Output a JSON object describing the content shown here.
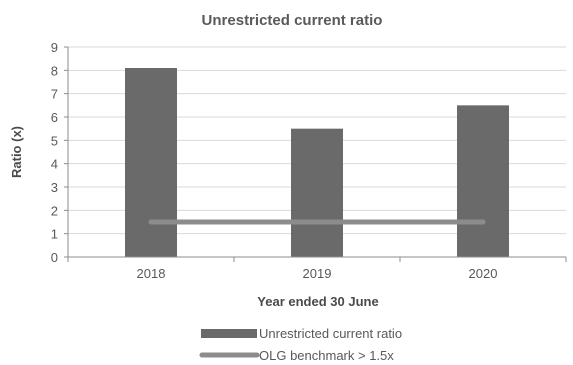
{
  "chart_data": {
    "type": "bar",
    "title": "Unrestricted current ratio",
    "xlabel": "Year ended 30 June",
    "ylabel": "Ratio (x)",
    "categories": [
      "2018",
      "2019",
      "2020"
    ],
    "series": [
      {
        "name": "Unrestricted current ratio",
        "type": "bar",
        "values": [
          8.1,
          5.5,
          6.5
        ],
        "color": "#6a6a6a"
      },
      {
        "name": "OLG benchmark > 1.5x",
        "type": "line",
        "values": [
          1.5,
          1.5,
          1.5
        ],
        "color": "#8c8c8c"
      }
    ],
    "ylim": [
      0,
      9
    ],
    "yticks": [
      0,
      1,
      2,
      3,
      4,
      5,
      6,
      7,
      8,
      9
    ],
    "grid": true,
    "legend_position": "bottom"
  }
}
